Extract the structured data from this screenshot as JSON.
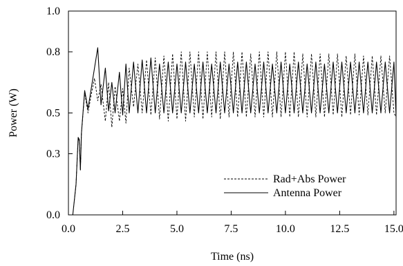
{
  "chart_data": {
    "type": "line",
    "title": "",
    "xlabel": "Time (ns)",
    "ylabel": "Power (W)",
    "xlim": [
      0,
      15.1
    ],
    "ylim": [
      0,
      1.0
    ],
    "x_ticks": [
      0.0,
      2.5,
      5.0,
      7.5,
      10.0,
      12.5,
      15.0
    ],
    "x_tick_labels": [
      "0.0",
      "2.5",
      "5.0",
      "7.5",
      "10.0",
      "12.5",
      "15.0"
    ],
    "y_ticks": [
      0.0,
      0.3,
      0.5,
      0.8,
      1.0
    ],
    "y_tick_labels": [
      "0.0",
      "0.3",
      "0.5",
      "0.8",
      "1.0"
    ],
    "grid": false,
    "legend_position": "lower-right",
    "series": [
      {
        "name": "Rad+Abs Power",
        "line_style": "dashed",
        "x": [
          0.2,
          0.35,
          0.45,
          0.5,
          0.55,
          0.6,
          0.75,
          0.9,
          1.05,
          1.2,
          1.35,
          1.5,
          1.7,
          1.85,
          2.0,
          2.15,
          2.35,
          2.5,
          2.65,
          2.8,
          3.0,
          3.2,
          3.4,
          3.6,
          3.8,
          4.0,
          4.2,
          4.4,
          4.6,
          4.8,
          5.0,
          5.2,
          5.4,
          5.6,
          5.8,
          6.0,
          6.2,
          6.4,
          6.6,
          6.8,
          7.0,
          7.2,
          7.4,
          7.6,
          7.8,
          8.0,
          8.2,
          8.4,
          8.6,
          8.8,
          9.0,
          9.2,
          9.4,
          9.6,
          9.8,
          10.0,
          10.2,
          10.4,
          10.6,
          10.8,
          11.0,
          11.2,
          11.4,
          11.6,
          11.8,
          12.0,
          12.2,
          12.4,
          12.6,
          12.8,
          13.0,
          13.2,
          13.4,
          13.6,
          13.8,
          14.0,
          14.2,
          14.4,
          14.6,
          14.8,
          15.0,
          15.1
        ],
        "y": [
          0.0,
          0.15,
          0.38,
          0.36,
          0.22,
          0.4,
          0.6,
          0.5,
          0.59,
          0.67,
          0.56,
          0.64,
          0.46,
          0.65,
          0.43,
          0.63,
          0.46,
          0.62,
          0.45,
          0.72,
          0.53,
          0.74,
          0.5,
          0.76,
          0.49,
          0.77,
          0.47,
          0.78,
          0.46,
          0.79,
          0.47,
          0.8,
          0.46,
          0.8,
          0.48,
          0.8,
          0.47,
          0.8,
          0.48,
          0.8,
          0.47,
          0.8,
          0.48,
          0.8,
          0.48,
          0.8,
          0.48,
          0.79,
          0.48,
          0.8,
          0.48,
          0.8,
          0.48,
          0.8,
          0.48,
          0.8,
          0.48,
          0.8,
          0.48,
          0.79,
          0.48,
          0.79,
          0.48,
          0.79,
          0.48,
          0.79,
          0.49,
          0.79,
          0.48,
          0.78,
          0.49,
          0.79,
          0.49,
          0.78,
          0.49,
          0.78,
          0.49,
          0.78,
          0.5,
          0.78,
          0.5,
          0.48
        ]
      },
      {
        "name": "Antenna Power",
        "line_style": "solid",
        "x": [
          0.2,
          0.35,
          0.45,
          0.5,
          0.55,
          0.6,
          0.75,
          0.9,
          1.05,
          1.2,
          1.35,
          1.5,
          1.7,
          1.85,
          2.0,
          2.15,
          2.35,
          2.5,
          2.65,
          2.8,
          3.0,
          3.2,
          3.4,
          3.6,
          3.8,
          4.0,
          4.2,
          4.4,
          4.6,
          4.8,
          5.0,
          5.2,
          5.4,
          5.6,
          5.8,
          6.0,
          6.2,
          6.4,
          6.6,
          6.8,
          7.0,
          7.2,
          7.4,
          7.6,
          7.8,
          8.0,
          8.2,
          8.4,
          8.6,
          8.8,
          9.0,
          9.2,
          9.4,
          9.6,
          9.8,
          10.0,
          10.2,
          10.4,
          10.6,
          10.8,
          11.0,
          11.2,
          11.4,
          11.6,
          11.8,
          12.0,
          12.2,
          12.4,
          12.6,
          12.8,
          13.0,
          13.2,
          13.4,
          13.6,
          13.8,
          14.0,
          14.2,
          14.4,
          14.6,
          14.8,
          15.0,
          15.1
        ],
        "y": [
          0.0,
          0.15,
          0.38,
          0.37,
          0.22,
          0.4,
          0.61,
          0.52,
          0.62,
          0.72,
          0.82,
          0.54,
          0.72,
          0.51,
          0.65,
          0.5,
          0.7,
          0.49,
          0.74,
          0.5,
          0.75,
          0.5,
          0.76,
          0.5,
          0.77,
          0.5,
          0.74,
          0.5,
          0.75,
          0.5,
          0.74,
          0.5,
          0.75,
          0.5,
          0.74,
          0.5,
          0.75,
          0.5,
          0.74,
          0.5,
          0.75,
          0.5,
          0.74,
          0.5,
          0.75,
          0.5,
          0.75,
          0.5,
          0.74,
          0.5,
          0.75,
          0.5,
          0.74,
          0.5,
          0.75,
          0.5,
          0.74,
          0.5,
          0.75,
          0.5,
          0.74,
          0.5,
          0.75,
          0.5,
          0.74,
          0.5,
          0.75,
          0.5,
          0.75,
          0.5,
          0.75,
          0.5,
          0.75,
          0.5,
          0.75,
          0.5,
          0.75,
          0.5,
          0.75,
          0.5,
          0.75,
          0.48
        ]
      }
    ]
  }
}
